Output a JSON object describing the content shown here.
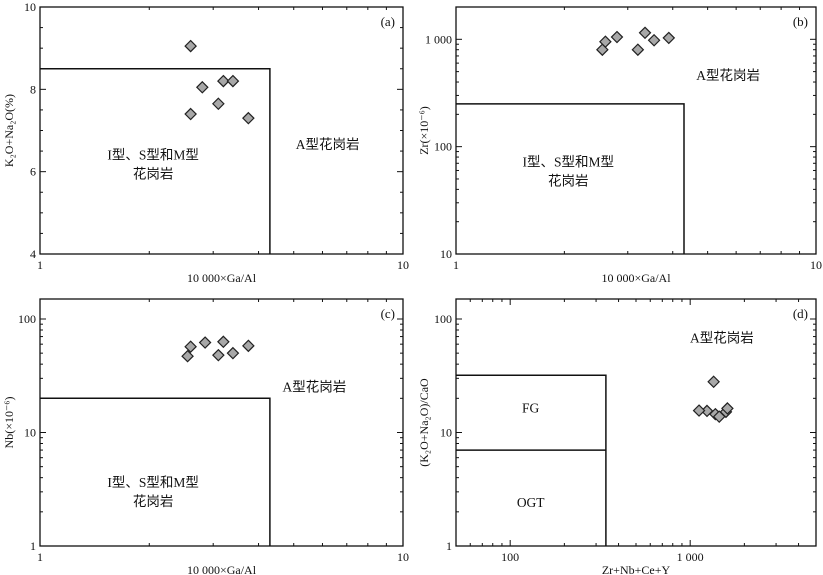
{
  "chart_data": [
    {
      "id": "a",
      "type": "scatter",
      "panel_label": "(a)",
      "xlabel": "10 000×Ga/Al",
      "ylabel": "K₂O+Na₂O(%)",
      "xscale": "log",
      "yscale": "linear",
      "xlim": [
        1,
        10
      ],
      "ylim": [
        4,
        10
      ],
      "xticks": [
        1,
        10
      ],
      "xtick_labels": [
        "1",
        "10"
      ],
      "xminor": [
        2,
        3,
        4,
        5,
        6,
        7,
        8,
        9
      ],
      "yticks": [
        4,
        6,
        8,
        10
      ],
      "ytick_labels": [
        "4",
        "6",
        "8",
        "10"
      ],
      "yminor": [
        4.5,
        5,
        5.5,
        6.5,
        7,
        7.5,
        8.5,
        9,
        9.5
      ],
      "points": [
        {
          "x": 2.6,
          "y": 9.05
        },
        {
          "x": 2.6,
          "y": 7.4
        },
        {
          "x": 2.8,
          "y": 8.05
        },
        {
          "x": 3.1,
          "y": 7.65
        },
        {
          "x": 3.2,
          "y": 8.2
        },
        {
          "x": 3.4,
          "y": 8.2
        },
        {
          "x": 3.75,
          "y": 7.3
        }
      ],
      "regions": [
        {
          "polyline": [
            [
              1,
              8.5
            ],
            [
              4.3,
              8.5
            ],
            [
              4.3,
              4
            ]
          ]
        }
      ],
      "region_labels": [
        {
          "lines": [
            "I型、S型和M型",
            "花岗岩"
          ],
          "x": 2.05,
          "y": 6.3
        },
        {
          "lines": [
            "A型花岗岩"
          ],
          "x": 6.2,
          "y": 6.55
        }
      ]
    },
    {
      "id": "b",
      "type": "scatter",
      "panel_label": "(b)",
      "xlabel": "10 000×Ga/Al",
      "ylabel": "Zr(×10⁻⁶)",
      "xscale": "log",
      "yscale": "log",
      "xlim": [
        1,
        10
      ],
      "ylim": [
        10,
        2000
      ],
      "xticks": [
        1,
        10
      ],
      "xtick_labels": [
        "1",
        "10"
      ],
      "xminor": [
        2,
        3,
        4,
        5,
        6,
        7,
        8,
        9
      ],
      "yticks": [
        10,
        100,
        1000
      ],
      "ytick_labels": [
        "10",
        "100",
        "1 000"
      ],
      "yminor": [
        20,
        30,
        40,
        50,
        60,
        70,
        80,
        90,
        200,
        300,
        400,
        500,
        600,
        700,
        800,
        900
      ],
      "points": [
        {
          "x": 2.55,
          "y": 800
        },
        {
          "x": 2.6,
          "y": 950
        },
        {
          "x": 2.8,
          "y": 1050
        },
        {
          "x": 3.2,
          "y": 800
        },
        {
          "x": 3.35,
          "y": 1150
        },
        {
          "x": 3.55,
          "y": 980
        },
        {
          "x": 3.9,
          "y": 1030
        }
      ],
      "regions": [
        {
          "polyline": [
            [
              1,
              250
            ],
            [
              4.3,
              250
            ],
            [
              4.3,
              10
            ]
          ]
        }
      ],
      "region_labels": [
        {
          "lines": [
            "I型、S型和M型",
            "花岗岩"
          ],
          "x": 2.05,
          "y": 65
        },
        {
          "lines": [
            "A型花岗岩"
          ],
          "x": 5.7,
          "y": 420
        }
      ]
    },
    {
      "id": "c",
      "type": "scatter",
      "panel_label": "(c)",
      "xlabel": "10 000×Ga/Al",
      "ylabel": "Nb(×10⁻⁶)",
      "xscale": "log",
      "yscale": "log",
      "xlim": [
        1,
        10
      ],
      "ylim": [
        1,
        150
      ],
      "xticks": [
        1,
        10
      ],
      "xtick_labels": [
        "1",
        "10"
      ],
      "xminor": [
        2,
        3,
        4,
        5,
        6,
        7,
        8,
        9
      ],
      "yticks": [
        1,
        10,
        100
      ],
      "ytick_labels": [
        "1",
        "10",
        "100"
      ],
      "yminor": [
        2,
        3,
        4,
        5,
        6,
        7,
        8,
        9,
        20,
        30,
        40,
        50,
        60,
        70,
        80,
        90
      ],
      "points": [
        {
          "x": 2.55,
          "y": 47
        },
        {
          "x": 2.6,
          "y": 57
        },
        {
          "x": 2.85,
          "y": 62
        },
        {
          "x": 3.1,
          "y": 48
        },
        {
          "x": 3.2,
          "y": 63
        },
        {
          "x": 3.4,
          "y": 50
        },
        {
          "x": 3.75,
          "y": 58
        }
      ],
      "regions": [
        {
          "polyline": [
            [
              1,
              20
            ],
            [
              4.3,
              20
            ],
            [
              4.3,
              1
            ]
          ]
        }
      ],
      "region_labels": [
        {
          "lines": [
            "I型、S型和M型",
            "花岗岩"
          ],
          "x": 2.05,
          "y": 3.3
        },
        {
          "lines": [
            "A型花岗岩"
          ],
          "x": 5.7,
          "y": 23
        }
      ]
    },
    {
      "id": "d",
      "type": "scatter",
      "panel_label": "(d)",
      "xlabel": "Zr+Nb+Ce+Y",
      "ylabel": "(K₂O+Na₂O)/CaO",
      "xscale": "log",
      "yscale": "log",
      "xlim": [
        50,
        5000
      ],
      "ylim": [
        1,
        150
      ],
      "xticks": [
        100,
        1000
      ],
      "xtick_labels": [
        "100",
        "1 000"
      ],
      "xminor": [
        60,
        70,
        80,
        90,
        200,
        300,
        400,
        500,
        600,
        700,
        800,
        900,
        2000,
        3000,
        4000
      ],
      "yticks": [
        1,
        10,
        100
      ],
      "ytick_labels": [
        "1",
        "10",
        "100"
      ],
      "yminor": [
        2,
        3,
        4,
        5,
        6,
        7,
        8,
        9,
        20,
        30,
        40,
        50,
        60,
        70,
        80,
        90
      ],
      "points": [
        {
          "x": 1240,
          "y": 15.5
        },
        {
          "x": 1350,
          "y": 28
        },
        {
          "x": 1380,
          "y": 14.5
        },
        {
          "x": 1450,
          "y": 13.8
        },
        {
          "x": 1580,
          "y": 15.2
        },
        {
          "x": 1610,
          "y": 16.3
        },
        {
          "x": 1120,
          "y": 15.6
        }
      ],
      "regions": [
        {
          "polyline": [
            [
              50,
              7
            ],
            [
              340,
              7
            ]
          ]
        },
        {
          "polyline": [
            [
              50,
              32
            ],
            [
              340,
              32
            ],
            [
              340,
              1
            ]
          ]
        }
      ],
      "region_labels": [
        {
          "lines": [
            "FG"
          ],
          "x": 130,
          "y": 15
        },
        {
          "lines": [
            "OGT"
          ],
          "x": 130,
          "y": 2.2
        },
        {
          "lines": [
            "A型花岗岩"
          ],
          "x": 1500,
          "y": 62
        }
      ]
    }
  ]
}
